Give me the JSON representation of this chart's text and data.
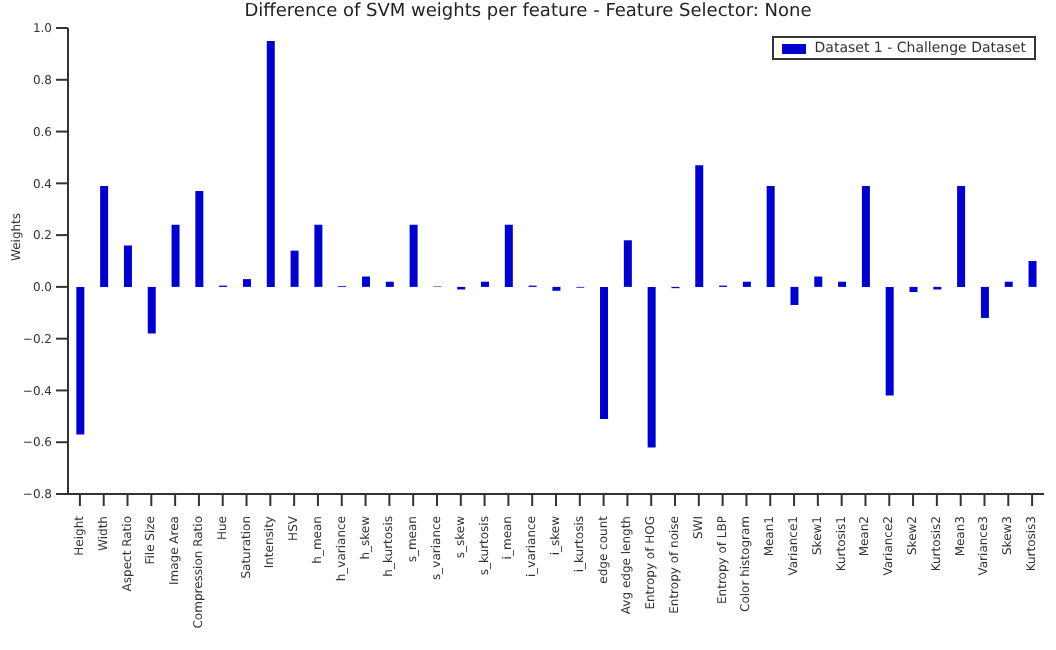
{
  "chart_data": {
    "type": "bar",
    "title": "Difference of SVM weights per feature  - Feature Selector: None",
    "ylabel": "Weights",
    "categories": [
      "Height",
      "Width",
      "Aspect Ratio",
      "File Size",
      "Image Area",
      "Compression Ratio",
      "Hue",
      "Saturation",
      "Intensity",
      "HSV",
      "h_mean",
      "h_variance",
      "h_skew",
      "h_kurtosis",
      "s_mean",
      "s_variance",
      "s_skew",
      "s_kurtosis",
      "i_mean",
      "i_variance",
      "i_skew",
      "i_kurtosis",
      "edge count",
      "Avg edge length",
      "Entropy of HOG",
      "Entropy of noise",
      "SWI",
      "Entropy of LBP",
      "Color histogram",
      "Mean1",
      "Variance1",
      "Skew1",
      "Kurtosis1",
      "Mean2",
      "Variance2",
      "Skew2",
      "Kurtosis2",
      "Mean3",
      "Variance3",
      "Skew3",
      "Kurtosis3"
    ],
    "series": [
      {
        "name": "Dataset 1 - Challenge Dataset",
        "color": "#0000cc",
        "values": [
          -0.57,
          0.39,
          0.16,
          -0.18,
          0.24,
          0.37,
          0.005,
          0.03,
          0.95,
          0.14,
          0.24,
          0.003,
          0.04,
          0.02,
          0.24,
          0.002,
          -0.01,
          0.02,
          0.24,
          0.005,
          -0.015,
          -0.003,
          -0.51,
          0.18,
          -0.62,
          -0.005,
          0.47,
          0.005,
          0.02,
          0.39,
          -0.07,
          0.04,
          0.02,
          0.39,
          -0.42,
          -0.02,
          -0.01,
          0.39,
          -0.12,
          0.02,
          0.1
        ]
      }
    ],
    "ylim": [
      -0.8,
      1.0
    ],
    "yticks": [
      {
        "value": -0.8,
        "label": "−0.8"
      },
      {
        "value": -0.6,
        "label": "−0.6"
      },
      {
        "value": -0.4,
        "label": "−0.4"
      },
      {
        "value": -0.2,
        "label": "−0.2"
      },
      {
        "value": 0,
        "label": "0.0"
      },
      {
        "value": 0.2,
        "label": "0.2"
      },
      {
        "value": 0.4,
        "label": "0.4"
      },
      {
        "value": 0.6,
        "label": "0.6"
      },
      {
        "value": 0.8,
        "label": "0.8"
      },
      {
        "value": 1.0,
        "label": "1.0"
      }
    ],
    "grid": false,
    "legend": "top right"
  }
}
